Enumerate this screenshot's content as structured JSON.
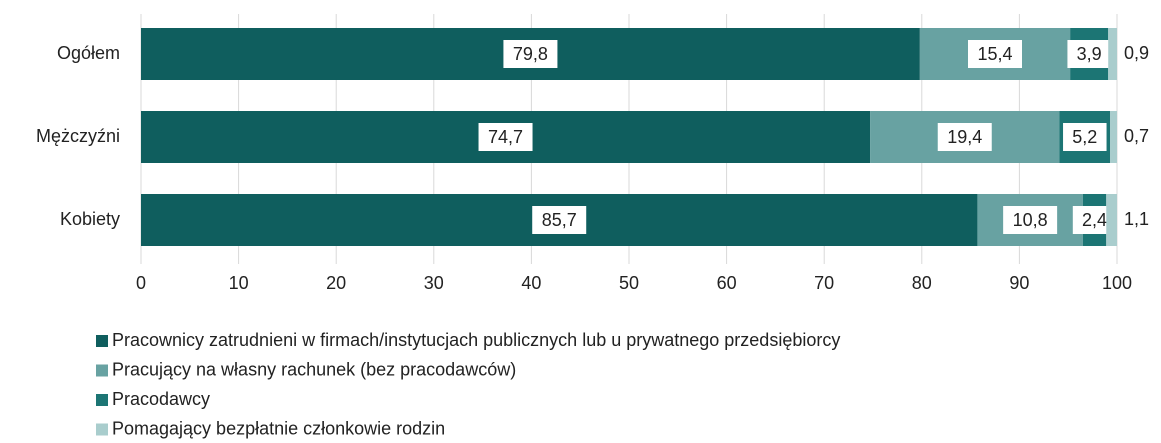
{
  "chart_data": {
    "type": "stacked-bar-horizontal",
    "categories": [
      "Ogółem",
      "Mężczyźni",
      "Kobiety"
    ],
    "series": [
      {
        "name": "Pracownicy zatrudnieni w firmach/instytucjach publicznych lub u prywatnego przedsiębiorcy",
        "color": "#0f5e5e",
        "values": [
          79.8,
          74.7,
          85.7
        ],
        "value_labels": [
          "79,8",
          "74,7",
          "85,7"
        ]
      },
      {
        "name": "Pracujący na własny rachunek (bez pracodawców)",
        "color": "#68a2a2",
        "values": [
          15.4,
          19.4,
          10.8
        ],
        "value_labels": [
          "15,4",
          "19,4",
          "10,8"
        ]
      },
      {
        "name": "Pracodawcy",
        "color": "#1c7574",
        "values": [
          3.9,
          5.2,
          2.4
        ],
        "value_labels": [
          "3,9",
          "5,2",
          "2,4"
        ]
      },
      {
        "name": "Pomagający bezpłatnie członkowie rodzin",
        "color": "#a9cdcd",
        "values": [
          0.9,
          0.7,
          1.1
        ],
        "value_labels": [
          "0,9",
          "0,7",
          "1,1"
        ]
      }
    ],
    "xlim": [
      0,
      100
    ],
    "xticks": [
      0,
      10,
      20,
      30,
      40,
      50,
      60,
      70,
      80,
      90,
      100
    ],
    "grid": true
  }
}
